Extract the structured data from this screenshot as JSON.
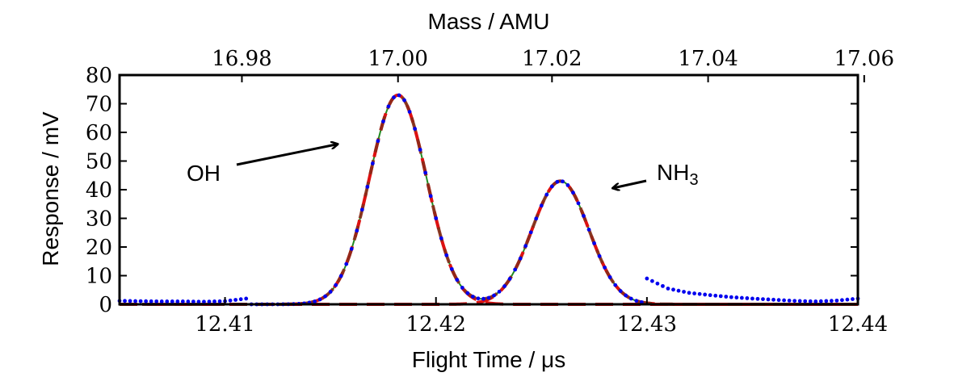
{
  "chart_data": {
    "type": "line",
    "xlabel": "Flight Time / μs",
    "ylabel": "Response / mV",
    "x2label": "Mass / AMU",
    "xlim": [
      12.405,
      12.44
    ],
    "ylim": [
      0,
      80
    ],
    "x_ticks": [
      12.41,
      12.42,
      12.43,
      12.44
    ],
    "x_tick_labels": [
      "12.41",
      "12.42",
      "12.43",
      "12.44"
    ],
    "y_ticks": [
      0,
      10,
      20,
      30,
      40,
      50,
      60,
      70,
      80
    ],
    "y_tick_labels": [
      "0",
      "10",
      "20",
      "30",
      "40",
      "50",
      "60",
      "70",
      "80"
    ],
    "x2_tick_labels": [
      "16.98",
      "17.00",
      "17.02",
      "17.04",
      "17.06"
    ],
    "x2_tick_flight_times": [
      12.4108,
      12.4182,
      12.4255,
      12.4329,
      12.4403
    ],
    "grid": false,
    "annotations": [
      {
        "text": "OH",
        "label_at": [
          12.4095,
          45
        ],
        "arrow_to": [
          12.4154,
          57
        ]
      },
      {
        "text": "NH",
        "subscript": "3",
        "label_at": [
          12.432,
          43
        ],
        "arrow_to": [
          12.4288,
          38
        ]
      }
    ],
    "peaks": [
      {
        "center": 12.4182,
        "amplitude": 73,
        "sigma": 0.00135
      },
      {
        "center": 12.4259,
        "amplitude": 43,
        "sigma": 0.00135
      }
    ],
    "series": [
      {
        "style": "blue dotted (measured)",
        "color": "#0000ee",
        "x": [
          12.405,
          12.406,
          12.407,
          12.408,
          12.409,
          12.41,
          12.411,
          12.412,
          12.413,
          12.414,
          12.415,
          12.416,
          12.417,
          12.418,
          12.419,
          12.42,
          12.421,
          12.422,
          12.423,
          12.424,
          12.425,
          12.426,
          12.427,
          12.428,
          12.429,
          12.43,
          12.431,
          12.432,
          12.433,
          12.434,
          12.435,
          12.436,
          12.437,
          12.438,
          12.439,
          12.44
        ],
        "y": [
          1.2,
          1.1,
          1.0,
          1.0,
          0.9,
          1.1,
          2.0,
          5.0,
          14.0,
          32.0,
          52.0,
          66.0,
          72.0,
          73.0,
          64.0,
          42.0,
          20.0,
          10.0,
          9.0,
          14.0,
          30.0,
          42.0,
          43.0,
          35.0,
          20.0,
          9.0,
          5.5,
          4.0,
          3.2,
          2.5,
          2.0,
          1.6,
          1.2,
          1.0,
          1.3,
          2.0
        ]
      },
      {
        "style": "green solid (fit sum)",
        "color": "#228b22"
      },
      {
        "style": "red dashed (OH component)",
        "color": "#dd1111"
      },
      {
        "style": "red dashed (NH3 component)",
        "color": "#dd1111"
      },
      {
        "style": "dark red dashed (sum)",
        "color": "#8b2a1a"
      }
    ]
  }
}
